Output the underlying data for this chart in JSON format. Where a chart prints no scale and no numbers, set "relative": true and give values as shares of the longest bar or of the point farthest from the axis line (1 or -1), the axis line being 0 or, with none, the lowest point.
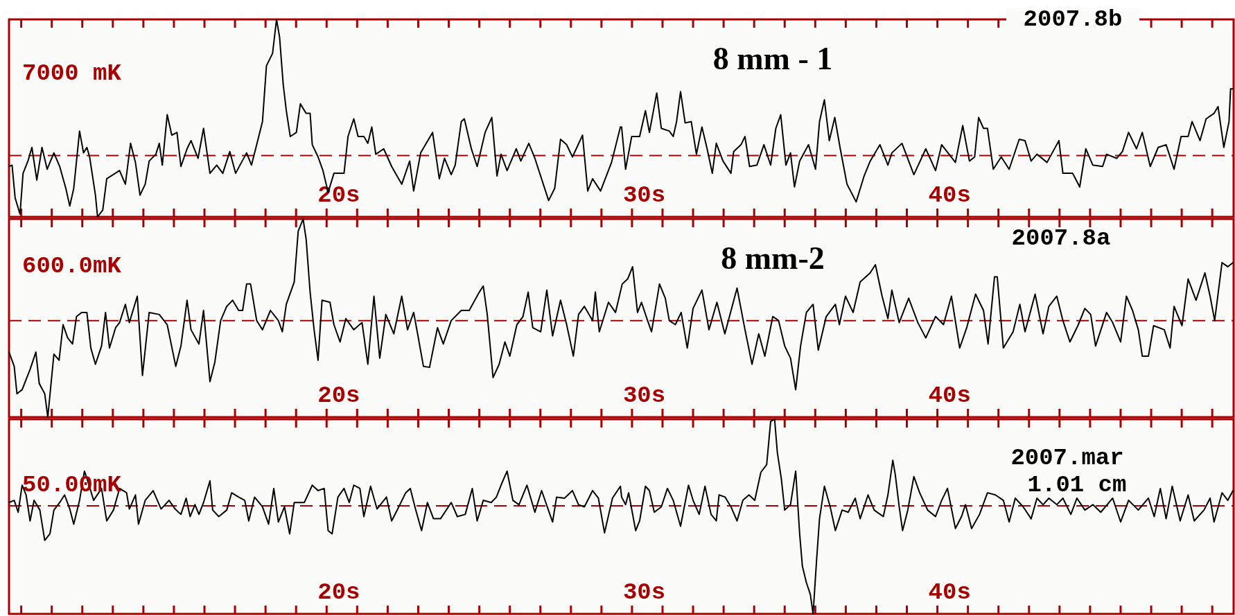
{
  "chart_data": [
    {
      "type": "line",
      "title": "8 mm - 1",
      "annotations": [
        "7000 mK",
        "2007.8b"
      ],
      "relative": true,
      "color": "#000000",
      "xlim": [
        9.2,
        49.3
      ],
      "xticks": [
        {
          "value": 9.6,
          "label": null
        },
        {
          "value": 10.6,
          "label": null
        },
        {
          "value": 11.6,
          "label": null
        },
        {
          "value": 12.6,
          "label": null
        },
        {
          "value": 13.6,
          "label": null
        },
        {
          "value": 14.6,
          "label": null
        },
        {
          "value": 15.6,
          "label": null
        },
        {
          "value": 16.6,
          "label": null
        },
        {
          "value": 17.6,
          "label": null
        },
        {
          "value": 18.6,
          "label": null
        },
        {
          "value": 19.6,
          "label": null
        },
        {
          "value": 20,
          "label": "20s"
        },
        {
          "value": 20.6,
          "label": null
        },
        {
          "value": 21.6,
          "label": null
        },
        {
          "value": 22.6,
          "label": null
        },
        {
          "value": 23.6,
          "label": null
        },
        {
          "value": 24.6,
          "label": null
        },
        {
          "value": 25.6,
          "label": null
        },
        {
          "value": 26.6,
          "label": null
        },
        {
          "value": 27.6,
          "label": null
        },
        {
          "value": 28.6,
          "label": null
        },
        {
          "value": 29.6,
          "label": null
        },
        {
          "value": 30,
          "label": "30s"
        },
        {
          "value": 30.6,
          "label": null
        },
        {
          "value": 31.6,
          "label": null
        },
        {
          "value": 32.6,
          "label": null
        },
        {
          "value": 33.6,
          "label": null
        },
        {
          "value": 34.6,
          "label": null
        },
        {
          "value": 35.6,
          "label": null
        },
        {
          "value": 36.6,
          "label": null
        },
        {
          "value": 37.6,
          "label": null
        },
        {
          "value": 38.6,
          "label": null
        },
        {
          "value": 39.6,
          "label": null
        },
        {
          "value": 40,
          "label": "40s"
        },
        {
          "value": 40.6,
          "label": null
        },
        {
          "value": 41.6,
          "label": null
        },
        {
          "value": 42.6,
          "label": null
        },
        {
          "value": 43.6,
          "label": null
        },
        {
          "value": 44.6,
          "label": null
        },
        {
          "value": 45.6,
          "label": null
        },
        {
          "value": 46.6,
          "label": null
        },
        {
          "value": 47.6,
          "label": null
        },
        {
          "value": 48.6,
          "label": null
        }
      ],
      "ref_lines": [
        {
          "axis": "y",
          "value": 0,
          "color": "#a80000",
          "line_style": "dashed"
        }
      ],
      "x": [
        9.2,
        9.3,
        9.4,
        9.56,
        9.66,
        9.82,
        9.95,
        10.11,
        10.28,
        10.45,
        10.67,
        10.86,
        11.06,
        11.19,
        11.32,
        11.51,
        11.64,
        11.75,
        11.84,
        12.03,
        12.1,
        12.27,
        12.4,
        12.82,
        13.01,
        13.18,
        13.34,
        13.49,
        13.66,
        13.79,
        14.01,
        14.12,
        14.22,
        14.38,
        14.53,
        14.7,
        14.83,
        15.03,
        15.16,
        15.39,
        15.57,
        15.78,
        16.0,
        16.2,
        16.43,
        16.62,
        16.98,
        17.14,
        17.31,
        17.5,
        17.63,
        17.83,
        17.96,
        18.06,
        18.18,
        18.28,
        18.41,
        18.61,
        18.74,
        18.93,
        19.06,
        19.13,
        19.32,
        19.48,
        19.65,
        19.84,
        20.17,
        20.3,
        20.49,
        20.63,
        20.82,
        20.95,
        21.08,
        21.21,
        21.47,
        21.73,
        22.06,
        22.32,
        22.45,
        22.68,
        23.07,
        23.29,
        23.46,
        23.68,
        23.81,
        24.01,
        24.11,
        24.34,
        24.53,
        24.79,
        25.01,
        25.18,
        25.31,
        25.51,
        25.81,
        25.96,
        26.22,
        26.42,
        26.87,
        27.07,
        27.26,
        27.46,
        27.65,
        27.98,
        28.15,
        28.31,
        28.57,
        28.93,
        29.22,
        29.26,
        29.39,
        29.59,
        29.85,
        30.04,
        30.17,
        30.41,
        30.56,
        30.82,
        30.95,
        31.06,
        31.19,
        31.34,
        31.54,
        31.71,
        31.89,
        32.06,
        32.23,
        32.36,
        32.58,
        32.84,
        32.93,
        33.17,
        33.3,
        33.45,
        33.69,
        33.92,
        34.14,
        34.31,
        34.47,
        34.64,
        34.79,
        34.92,
        35.09,
        35.38,
        35.61,
        35.74,
        35.9,
        36.06,
        36.24,
        36.42,
        36.64,
        36.94,
        37.2,
        37.4,
        37.72,
        37.98,
        38.11,
        38.44,
        38.83,
        39.22,
        39.54,
        39.74,
        40.19,
        40.43,
        40.65,
        40.82,
        40.95,
        41.11,
        41.24,
        41.43,
        41.69,
        41.95,
        42.28,
        42.47,
        42.67,
        42.86,
        43.19,
        43.58,
        43.71,
        44.03,
        44.26,
        44.46,
        44.69,
        45.01,
        45.14,
        45.47,
        45.66,
        45.86,
        46.12,
        46.31,
        46.57,
        46.83,
        47.09,
        47.35,
        47.58,
        47.81,
        47.94,
        48.2,
        48.4,
        48.66,
        48.79,
        48.98,
        49.15,
        49.2,
        49.28
      ],
      "values": [
        -0.08,
        -0.07,
        -0.31,
        -0.43,
        -0.13,
        -0.04,
        0.06,
        -0.18,
        0.06,
        -0.1,
        0.02,
        -0.08,
        -0.24,
        -0.37,
        -0.24,
        0.18,
        0.02,
        0.06,
        -0.01,
        -0.29,
        -0.45,
        -0.4,
        -0.17,
        -0.11,
        -0.21,
        0.09,
        -0.05,
        -0.29,
        -0.21,
        -0.04,
        0.01,
        0.09,
        -0.07,
        0.3,
        0.15,
        0.17,
        -0.08,
        0.05,
        0.11,
        -0.02,
        0.2,
        -0.13,
        -0.07,
        -0.13,
        0.03,
        -0.13,
        0.02,
        -0.07,
        0.08,
        0.25,
        0.66,
        0.75,
        1.0,
        0.87,
        0.52,
        0.33,
        0.14,
        0.17,
        0.38,
        0.31,
        0.31,
        0.08,
        -0.01,
        -0.11,
        -0.27,
        -0.13,
        -0.13,
        0.14,
        0.27,
        0.14,
        0.14,
        0.09,
        0.21,
        0.01,
        0.05,
        -0.08,
        -0.21,
        -0.04,
        -0.26,
        0.02,
        0.17,
        -0.17,
        -0.02,
        -0.14,
        -0.07,
        0.25,
        0.27,
        0.05,
        -0.08,
        0.17,
        0.28,
        -0.15,
        0.01,
        -0.11,
        0.05,
        -0.04,
        0.09,
        -0.02,
        -0.33,
        -0.24,
        0.12,
        0.08,
        -0.01,
        0.15,
        -0.26,
        -0.17,
        -0.26,
        -0.05,
        0.21,
        0.21,
        -0.1,
        0.14,
        0.14,
        0.33,
        0.17,
        0.46,
        0.2,
        0.18,
        0.14,
        0.25,
        0.47,
        0.24,
        0.25,
        0.01,
        0.21,
        0.05,
        -0.13,
        0.09,
        -0.04,
        -0.13,
        0.03,
        0.08,
        0.14,
        -0.08,
        -0.07,
        0.08,
        -0.07,
        0.2,
        0.3,
        -0.07,
        0.02,
        -0.23,
        -0.04,
        0.08,
        -0.1,
        0.25,
        0.41,
        0.11,
        0.28,
        0.05,
        -0.21,
        -0.34,
        -0.15,
        -0.04,
        0.08,
        -0.07,
        0.02,
        0.09,
        -0.14,
        0.05,
        -0.11,
        0.08,
        -0.05,
        0.22,
        -0.04,
        -0.01,
        0.28,
        0.2,
        0.2,
        -0.1,
        -0.01,
        -0.1,
        0.12,
        0.11,
        -0.04,
        0.01,
        -0.05,
        0.11,
        -0.13,
        -0.13,
        -0.23,
        0.05,
        -0.07,
        -0.08,
        0.01,
        -0.02,
        0.03,
        0.17,
        0.05,
        0.17,
        -0.08,
        0.06,
        0.08,
        -0.1,
        0.14,
        0.14,
        0.25,
        0.11,
        0.27,
        0.31,
        0.36,
        0.06,
        0.25,
        0.49,
        0.49
      ]
    },
    {
      "type": "line",
      "title": "8 mm-2",
      "annotations": [
        "600.0mK",
        "2007.8a"
      ],
      "relative": true,
      "color": "#000000",
      "xlim": [
        9.2,
        49.3
      ],
      "xticks": [
        {
          "value": 9.6,
          "label": null
        },
        {
          "value": 10.6,
          "label": null
        },
        {
          "value": 11.6,
          "label": null
        },
        {
          "value": 12.6,
          "label": null
        },
        {
          "value": 13.6,
          "label": null
        },
        {
          "value": 14.6,
          "label": null
        },
        {
          "value": 15.6,
          "label": null
        },
        {
          "value": 16.6,
          "label": null
        },
        {
          "value": 17.6,
          "label": null
        },
        {
          "value": 18.6,
          "label": null
        },
        {
          "value": 19.6,
          "label": null
        },
        {
          "value": 20,
          "label": "20s"
        },
        {
          "value": 20.6,
          "label": null
        },
        {
          "value": 21.6,
          "label": null
        },
        {
          "value": 22.6,
          "label": null
        },
        {
          "value": 23.6,
          "label": null
        },
        {
          "value": 24.6,
          "label": null
        },
        {
          "value": 25.6,
          "label": null
        },
        {
          "value": 26.6,
          "label": null
        },
        {
          "value": 27.6,
          "label": null
        },
        {
          "value": 28.6,
          "label": null
        },
        {
          "value": 29.6,
          "label": null
        },
        {
          "value": 30,
          "label": "30s"
        },
        {
          "value": 30.6,
          "label": null
        },
        {
          "value": 31.6,
          "label": null
        },
        {
          "value": 32.6,
          "label": null
        },
        {
          "value": 33.6,
          "label": null
        },
        {
          "value": 34.6,
          "label": null
        },
        {
          "value": 35.6,
          "label": null
        },
        {
          "value": 36.6,
          "label": null
        },
        {
          "value": 37.6,
          "label": null
        },
        {
          "value": 38.6,
          "label": null
        },
        {
          "value": 39.6,
          "label": null
        },
        {
          "value": 40,
          "label": "40s"
        },
        {
          "value": 40.6,
          "label": null
        },
        {
          "value": 41.6,
          "label": null
        },
        {
          "value": 42.6,
          "label": null
        },
        {
          "value": 43.6,
          "label": null
        },
        {
          "value": 44.6,
          "label": null
        },
        {
          "value": 45.6,
          "label": null
        },
        {
          "value": 46.6,
          "label": null
        },
        {
          "value": 47.6,
          "label": null
        },
        {
          "value": 48.6,
          "label": null
        }
      ],
      "ref_lines": [
        {
          "axis": "y",
          "value": 0,
          "color": "#a80000",
          "line_style": "dashed"
        }
      ],
      "x": [
        9.2,
        9.37,
        9.46,
        9.63,
        9.89,
        10.08,
        10.19,
        10.37,
        10.47,
        10.67,
        10.84,
        10.97,
        11.12,
        11.28,
        11.41,
        11.58,
        11.75,
        11.88,
        12.03,
        12.23,
        12.36,
        12.49,
        12.69,
        12.82,
        13.01,
        13.14,
        13.4,
        13.57,
        13.79,
        14.12,
        14.38,
        14.66,
        14.83,
        15.03,
        15.16,
        15.42,
        15.57,
        15.78,
        15.94,
        16.13,
        16.33,
        16.52,
        16.72,
        16.85,
        16.98,
        17.11,
        17.31,
        17.5,
        17.76,
        18.02,
        18.15,
        18.28,
        18.54,
        18.67,
        18.83,
        18.93,
        19.06,
        19.19,
        19.32,
        19.45,
        19.71,
        19.84,
        20.04,
        20.23,
        20.49,
        20.76,
        20.95,
        21.15,
        21.34,
        21.54,
        21.8,
        22.06,
        22.25,
        22.45,
        22.58,
        22.77,
        22.97,
        23.23,
        23.42,
        23.68,
        24.01,
        24.27,
        24.6,
        24.73,
        24.86,
        25.05,
        25.25,
        25.44,
        25.6,
        25.83,
        26.03,
        26.2,
        26.35,
        26.61,
        26.81,
        27.0,
        27.26,
        27.46,
        27.68,
        27.85,
        28.04,
        28.31,
        28.4,
        28.53,
        28.83,
        29.06,
        29.28,
        29.46,
        29.62,
        29.78,
        29.91,
        30.11,
        30.24,
        30.5,
        30.69,
        30.82,
        31.02,
        31.21,
        31.41,
        31.6,
        31.89,
        32.12,
        32.38,
        32.64,
        33.04,
        33.3,
        33.53,
        33.75,
        33.95,
        34.21,
        34.4,
        34.6,
        34.79,
        34.96,
        35.12,
        35.31,
        35.53,
        35.7,
        35.96,
        36.26,
        36.39,
        36.59,
        36.84,
        37.07,
        37.4,
        37.57,
        37.79,
        37.98,
        38.11,
        38.35,
        38.66,
        38.96,
        39.22,
        39.54,
        39.8,
        40.06,
        40.33,
        40.56,
        40.85,
        41.11,
        41.26,
        41.47,
        41.56,
        41.76,
        42.08,
        42.3,
        42.47,
        42.8,
        43.06,
        43.25,
        43.51,
        43.71,
        43.94,
        44.2,
        44.43,
        44.62,
        44.78,
        45.14,
        45.34,
        45.6,
        45.79,
        45.99,
        46.18,
        46.31,
        46.51,
        46.68,
        47.03,
        47.22,
        47.35,
        47.61,
        47.81,
        48.07,
        48.36,
        48.53,
        48.68,
        48.92,
        49.11,
        49.28
      ],
      "values": [
        -0.31,
        -0.45,
        -0.72,
        -0.68,
        -0.48,
        -0.31,
        -0.62,
        -0.72,
        -0.95,
        -0.33,
        -0.39,
        -0.04,
        -0.17,
        -0.23,
        0.04,
        0.08,
        0.08,
        -0.27,
        -0.43,
        -0.25,
        0.08,
        -0.27,
        -0.07,
        -0.02,
        0.16,
        -0.02,
        0.24,
        -0.54,
        0.08,
        0.06,
        -0.04,
        -0.45,
        -0.25,
        0.2,
        -0.09,
        -0.23,
        0.1,
        -0.6,
        -0.41,
        0.0,
        0.14,
        0.2,
        0.1,
        0.1,
        0.36,
        0.36,
        0.0,
        -0.09,
        0.1,
        0.0,
        -0.11,
        0.16,
        0.38,
        0.88,
        1.0,
        0.8,
        0.28,
        -0.09,
        -0.39,
        0.2,
        0.18,
        -0.04,
        -0.21,
        0.02,
        -0.09,
        -0.02,
        -0.43,
        0.24,
        -0.37,
        0.06,
        -0.13,
        0.24,
        -0.09,
        0.08,
        -0.13,
        -0.45,
        -0.46,
        -0.07,
        -0.23,
        0.0,
        0.1,
        0.1,
        0.28,
        0.34,
        0.06,
        -0.56,
        -0.43,
        -0.21,
        -0.35,
        -0.04,
        0.04,
        0.28,
        -0.07,
        -0.11,
        0.3,
        -0.15,
        0.2,
        -0.04,
        -0.35,
        0.06,
        0.14,
        0.0,
        0.28,
        -0.11,
        0.18,
        0.08,
        0.36,
        0.41,
        0.53,
        0.08,
        0.18,
        0.0,
        -0.11,
        0.36,
        0.22,
        0.0,
        -0.04,
        0.08,
        -0.27,
        0.12,
        0.3,
        -0.09,
        0.18,
        -0.13,
        0.32,
        -0.09,
        -0.43,
        -0.13,
        -0.35,
        0.04,
        0.0,
        -0.25,
        -0.37,
        -0.68,
        -0.25,
        0.08,
        0.16,
        -0.29,
        0.04,
        0.16,
        -0.04,
        0.24,
        0.08,
        0.38,
        0.47,
        0.55,
        0.24,
        0.02,
        0.3,
        -0.02,
        0.22,
        -0.02,
        -0.17,
        0.04,
        -0.04,
        0.24,
        -0.27,
        -0.07,
        0.26,
        0.1,
        -0.23,
        0.43,
        0.43,
        -0.27,
        -0.11,
        0.16,
        -0.11,
        0.26,
        -0.13,
        0.14,
        0.24,
        0.0,
        -0.21,
        -0.05,
        0.12,
        0.06,
        -0.25,
        0.08,
        -0.02,
        -0.21,
        0.24,
        0.1,
        -0.09,
        -0.35,
        -0.35,
        -0.05,
        -0.09,
        -0.27,
        0.14,
        -0.05,
        0.41,
        0.2,
        0.47,
        0.24,
        0.0,
        0.57,
        0.53,
        0.57
      ]
    },
    {
      "type": "line",
      "annotations": [
        "50.00mK",
        "2007.mar",
        "1.01 cm"
      ],
      "relative": true,
      "color": "#000000",
      "xlim": [
        9.2,
        49.3
      ],
      "xticks": [
        {
          "value": 9.6,
          "label": null
        },
        {
          "value": 10.6,
          "label": null
        },
        {
          "value": 11.6,
          "label": null
        },
        {
          "value": 12.6,
          "label": null
        },
        {
          "value": 13.6,
          "label": null
        },
        {
          "value": 14.6,
          "label": null
        },
        {
          "value": 15.6,
          "label": null
        },
        {
          "value": 16.6,
          "label": null
        },
        {
          "value": 17.6,
          "label": null
        },
        {
          "value": 18.6,
          "label": null
        },
        {
          "value": 19.6,
          "label": null
        },
        {
          "value": 20,
          "label": "20s"
        },
        {
          "value": 20.6,
          "label": null
        },
        {
          "value": 21.6,
          "label": null
        },
        {
          "value": 22.6,
          "label": null
        },
        {
          "value": 23.6,
          "label": null
        },
        {
          "value": 24.6,
          "label": null
        },
        {
          "value": 25.6,
          "label": null
        },
        {
          "value": 26.6,
          "label": null
        },
        {
          "value": 27.6,
          "label": null
        },
        {
          "value": 28.6,
          "label": null
        },
        {
          "value": 29.6,
          "label": null
        },
        {
          "value": 30,
          "label": "30s"
        },
        {
          "value": 30.6,
          "label": null
        },
        {
          "value": 31.6,
          "label": null
        },
        {
          "value": 32.6,
          "label": null
        },
        {
          "value": 33.6,
          "label": null
        },
        {
          "value": 34.6,
          "label": null
        },
        {
          "value": 35.6,
          "label": null
        },
        {
          "value": 36.6,
          "label": null
        },
        {
          "value": 37.6,
          "label": null
        },
        {
          "value": 38.6,
          "label": null
        },
        {
          "value": 39.6,
          "label": null
        },
        {
          "value": 40,
          "label": "40s"
        },
        {
          "value": 40.6,
          "label": null
        },
        {
          "value": 41.6,
          "label": null
        },
        {
          "value": 42.6,
          "label": null
        },
        {
          "value": 43.6,
          "label": null
        },
        {
          "value": 44.6,
          "label": null
        },
        {
          "value": 45.6,
          "label": null
        },
        {
          "value": 46.6,
          "label": null
        },
        {
          "value": 47.6,
          "label": null
        },
        {
          "value": 48.6,
          "label": null
        }
      ],
      "ref_lines": [
        {
          "axis": "y",
          "value": 0,
          "color": "#a80000",
          "line_style": "dashed"
        }
      ],
      "x": [
        9.2,
        9.37,
        9.5,
        9.63,
        9.76,
        9.89,
        10.02,
        10.21,
        10.37,
        10.54,
        10.67,
        10.86,
        11.02,
        11.19,
        11.32,
        11.51,
        11.67,
        11.8,
        11.97,
        12.23,
        12.4,
        12.62,
        12.82,
        13.05,
        13.14,
        13.34,
        13.44,
        13.66,
        13.92,
        14.18,
        14.44,
        14.64,
        14.83,
        15.0,
        15.13,
        15.29,
        15.42,
        15.57,
        15.78,
        15.87,
        16.07,
        16.33,
        16.49,
        16.72,
        16.92,
        17.05,
        17.24,
        17.5,
        17.7,
        17.87,
        18.02,
        18.22,
        18.39,
        18.54,
        18.87,
        19.13,
        19.32,
        19.52,
        19.65,
        19.78,
        19.97,
        20.17,
        20.34,
        20.49,
        20.69,
        20.82,
        21.04,
        21.25,
        21.56,
        21.73,
        21.93,
        22.19,
        22.34,
        22.51,
        22.71,
        22.9,
        23.1,
        23.33,
        23.68,
        23.88,
        24.14,
        24.37,
        24.53,
        24.73,
        24.99,
        25.16,
        25.34,
        25.51,
        25.7,
        25.9,
        26.16,
        26.42,
        26.64,
        27.0,
        27.13,
        27.39,
        27.65,
        27.85,
        28.04,
        28.31,
        28.5,
        28.7,
        28.96,
        29.22,
        29.26,
        29.39,
        29.49,
        29.72,
        29.85,
        30.04,
        30.17,
        30.33,
        30.56,
        30.76,
        30.95,
        31.19,
        31.45,
        31.6,
        31.8,
        31.99,
        32.19,
        32.36,
        32.45,
        32.65,
        32.84,
        33.04,
        33.23,
        33.43,
        33.62,
        33.82,
        34.01,
        34.14,
        34.27,
        34.36,
        34.49,
        34.6,
        34.79,
        34.96,
        35.09,
        35.18,
        35.31,
        35.44,
        35.53,
        35.64,
        35.74,
        35.9,
        36.09,
        36.26,
        36.48,
        36.68,
        36.91,
        37.07,
        37.33,
        37.53,
        37.83,
        37.98,
        38.14,
        38.22,
        38.35,
        38.46,
        38.63,
        38.83,
        39.02,
        39.28,
        39.54,
        39.74,
        39.93,
        40.19,
        40.39,
        40.52,
        40.72,
        40.98,
        41.24,
        41.5,
        41.76,
        41.95,
        42.15,
        42.41,
        42.67,
        42.86,
        43.06,
        43.25,
        43.51,
        43.71,
        43.97,
        44.17,
        44.43,
        44.69,
        44.95,
        45.34,
        45.6,
        45.86,
        46.18,
        46.51,
        46.7,
        46.9,
        47.09,
        47.29,
        47.55,
        47.81,
        48.01,
        48.33,
        48.53,
        48.66,
        48.92,
        49.11,
        49.28
      ],
      "values": [
        0.03,
        0.05,
        -0.06,
        0.19,
        0.1,
        -0.14,
        0.05,
        -0.04,
        -0.32,
        -0.26,
        -0.04,
        0.03,
        0.1,
        -0.03,
        -0.17,
        0.05,
        0.32,
        0.21,
        0.05,
        0.16,
        -0.14,
        -0.04,
        0.16,
        0.12,
        -0.03,
        0.1,
        -0.17,
        0.05,
        0.14,
        -0.03,
        0.05,
        -0.03,
        -0.08,
        0.07,
        -0.1,
        0.01,
        -0.08,
        0.03,
        0.23,
        -0.04,
        -0.1,
        -0.04,
        0.12,
        0.08,
        0.05,
        -0.14,
        0.08,
        -0.01,
        -0.17,
        0.16,
        -0.15,
        -0.01,
        -0.26,
        0.03,
        0.03,
        0.19,
        0.14,
        0.16,
        -0.23,
        -0.26,
        0.08,
        0.16,
        0.03,
        0.19,
        0.16,
        -0.1,
        0.18,
        -0.03,
        0.08,
        -0.14,
        -0.03,
        0.12,
        0.16,
        -0.03,
        -0.23,
        0.03,
        -0.12,
        -0.12,
        0.03,
        -0.1,
        -0.08,
        0.16,
        -0.14,
        0.05,
        0.03,
        0.08,
        0.21,
        0.32,
        0.05,
        0.01,
        0.19,
        -0.06,
        0.14,
        -0.15,
        0.08,
        0.07,
        0.14,
        0.01,
        -0.01,
        0.14,
        0.07,
        -0.25,
        0.07,
        0.18,
        0.08,
        0.01,
        0.12,
        -0.23,
        -0.14,
        0.18,
        0.14,
        -0.06,
        -0.01,
        0.16,
        0.05,
        -0.19,
        0.19,
        0.05,
        -0.08,
        0.18,
        -0.08,
        -0.14,
        0.1,
        0.08,
        -0.01,
        -0.14,
        0.05,
        0.1,
        0.05,
        0.31,
        0.38,
        0.78,
        0.8,
        0.49,
        0.25,
        -0.04,
        0.01,
        0.32,
        -0.26,
        -0.56,
        -0.71,
        -0.82,
        -1.0,
        -0.52,
        -0.12,
        0.18,
        -0.01,
        -0.23,
        -0.04,
        -0.06,
        0.07,
        -0.12,
        0.1,
        -0.04,
        -0.1,
        0.1,
        0.42,
        0.29,
        -0.01,
        -0.23,
        -0.04,
        0.27,
        0.12,
        -0.04,
        -0.1,
        0.05,
        0.16,
        -0.21,
        -0.1,
        0.01,
        -0.21,
        -0.08,
        0.12,
        0.1,
        0.05,
        -0.15,
        0.07,
        -0.01,
        -0.12,
        0.07,
        0.01,
        0.07,
        0.01,
        0.07,
        -0.08,
        0.07,
        -0.04,
        0.01,
        -0.06,
        0.07,
        -0.15,
        0.05,
        -0.04,
        0.07,
        -0.1,
        0.16,
        -0.12,
        0.18,
        -0.14,
        0.1,
        -0.14,
        -0.04,
        0.07,
        -0.15,
        0.12,
        0.05,
        0.14
      ]
    }
  ]
}
